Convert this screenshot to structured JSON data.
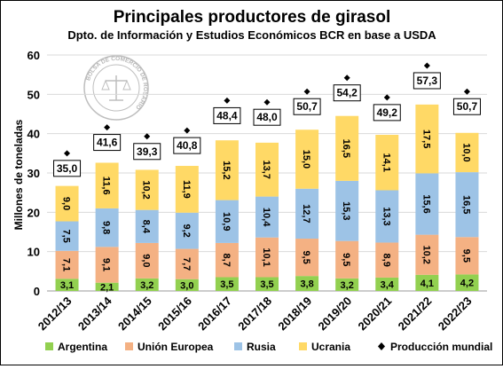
{
  "header": {
    "title": "Principales productores de girasol",
    "subtitle": "Dpto. de Información y Estudios Económicos BCR en base a USDA"
  },
  "logo": {
    "text": "BOLSA DE COMERCIO DE ROSARIO"
  },
  "chart_data": {
    "type": "bar",
    "stacked": true,
    "title": "Principales productores de girasol",
    "subtitle": "Dpto. de Información y Estudios Económicos BCR en base a USDA",
    "ylabel": "Millones de toneladas",
    "xlabel": "",
    "ylim": [
      0,
      60
    ],
    "yticks": [
      0,
      10,
      20,
      30,
      40,
      50,
      60
    ],
    "grid": true,
    "legend_position": "bottom",
    "categories": [
      "2012/13",
      "2013/14",
      "2014/15",
      "2015/16",
      "2016/17",
      "2017/18",
      "2018/19",
      "2019/20",
      "2020/21",
      "2021/22",
      "2022/23"
    ],
    "series": [
      {
        "name": "Argentina",
        "color": "#92d050",
        "values": [
          3.1,
          2.1,
          3.2,
          3.0,
          3.5,
          3.5,
          3.8,
          3.2,
          3.4,
          4.1,
          4.2
        ],
        "labels": [
          "3,1",
          "2,1",
          "3,2",
          "3,0",
          "3,5",
          "3,5",
          "3,8",
          "3,2",
          "3,4",
          "4,1",
          "4,2"
        ]
      },
      {
        "name": "Unión Europea",
        "color": "#f4b183",
        "values": [
          7.1,
          9.1,
          9.0,
          7.7,
          8.7,
          10.1,
          9.5,
          9.5,
          8.9,
          10.2,
          9.5
        ],
        "labels": [
          "7,1",
          "9,1",
          "9,0",
          "7,7",
          "8,7",
          "10,1",
          "9,5",
          "9,5",
          "8,9",
          "10,2",
          "9,5"
        ]
      },
      {
        "name": "Rusia",
        "color": "#9dc3e6",
        "values": [
          7.5,
          9.8,
          8.4,
          9.2,
          10.9,
          10.4,
          12.7,
          15.3,
          13.3,
          15.6,
          16.5
        ],
        "labels": [
          "7,5",
          "9,8",
          "8,4",
          "9,2",
          "10,9",
          "10,4",
          "12,7",
          "15,3",
          "13,3",
          "15,6",
          "16,5"
        ]
      },
      {
        "name": "Ucrania",
        "color": "#ffd966",
        "values": [
          9.0,
          11.6,
          10.2,
          11.9,
          15.2,
          13.7,
          15.0,
          16.5,
          14.1,
          17.5,
          10.0
        ],
        "labels": [
          "9,0",
          "11,6",
          "10,2",
          "11,9",
          "15,2",
          "13,7",
          "15,0",
          "16,5",
          "14,1",
          "17,5",
          "10,0"
        ]
      }
    ],
    "totals": {
      "name": "Producción mundial",
      "values": [
        35.0,
        41.6,
        39.3,
        40.8,
        48.4,
        48.0,
        50.7,
        54.2,
        49.2,
        57.3,
        50.7
      ],
      "labels": [
        "35,0",
        "41,6",
        "39,3",
        "40,8",
        "48,4",
        "48,0",
        "50,7",
        "54,2",
        "49,2",
        "57,3",
        "50,7"
      ],
      "color": "#000000"
    },
    "axis_labels": {
      "y": "Millones de toneladas"
    }
  }
}
